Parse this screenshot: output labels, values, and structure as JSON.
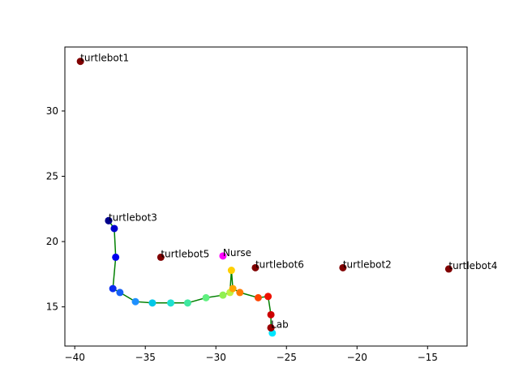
{
  "chart_data": {
    "type": "scatter",
    "xlim": [
      -40.7,
      -12.2
    ],
    "ylim": [
      12.0,
      34.9
    ],
    "x_ticks": [
      -40,
      -35,
      -30,
      -25,
      -20,
      -15
    ],
    "y_ticks": [
      15,
      20,
      25,
      30
    ],
    "x_tick_labels": [
      "−40",
      "−35",
      "−30",
      "−25",
      "−20",
      "−15"
    ],
    "y_tick_labels": [
      "15",
      "20",
      "25",
      "30"
    ],
    "grid": false,
    "path_color": "#008000",
    "path": [
      {
        "x": -37.6,
        "y": 21.6,
        "color": "#00008b"
      },
      {
        "x": -37.2,
        "y": 21.0,
        "color": "#0000cd"
      },
      {
        "x": -37.1,
        "y": 18.8,
        "color": "#0000ee"
      },
      {
        "x": -37.3,
        "y": 16.4,
        "color": "#0a2cf0"
      },
      {
        "x": -36.8,
        "y": 16.1,
        "color": "#1560f5"
      },
      {
        "x": -35.7,
        "y": 15.4,
        "color": "#1e90ff"
      },
      {
        "x": -34.5,
        "y": 15.3,
        "color": "#00c8e8"
      },
      {
        "x": -33.2,
        "y": 15.3,
        "color": "#1ee0d0"
      },
      {
        "x": -32.0,
        "y": 15.3,
        "color": "#40e8a0"
      },
      {
        "x": -30.7,
        "y": 15.7,
        "color": "#60f080"
      },
      {
        "x": -29.5,
        "y": 15.9,
        "color": "#90f050"
      },
      {
        "x": -29.0,
        "y": 16.1,
        "color": "#c0f040"
      },
      {
        "x": -28.9,
        "y": 17.8,
        "color": "#ffd000"
      },
      {
        "x": -28.8,
        "y": 16.4,
        "color": "#ffa500"
      },
      {
        "x": -28.3,
        "y": 16.1,
        "color": "#ff7a00"
      },
      {
        "x": -27.0,
        "y": 15.7,
        "color": "#ff4500"
      },
      {
        "x": -26.3,
        "y": 15.8,
        "color": "#ee1100"
      },
      {
        "x": -26.1,
        "y": 14.4,
        "color": "#cc0000"
      },
      {
        "x": -26.1,
        "y": 13.4,
        "color": "#9b0000"
      }
    ],
    "end_marker": {
      "x": -26.0,
      "y": 13.0,
      "color": "#00e5ff"
    },
    "locations": [
      {
        "label": "turtlebot1",
        "x": -39.6,
        "y": 33.8,
        "color": "#800000"
      },
      {
        "label": "turtlebot3",
        "x": -37.6,
        "y": 21.6,
        "color": "#00008b"
      },
      {
        "label": "turtlebot5",
        "x": -33.9,
        "y": 18.8,
        "color": "#800000"
      },
      {
        "label": "Nurse",
        "x": -29.5,
        "y": 18.9,
        "color": "#ff00ff"
      },
      {
        "label": "turtlebot6",
        "x": -27.2,
        "y": 18.0,
        "color": "#800000"
      },
      {
        "label": "turtlebot2",
        "x": -21.0,
        "y": 18.0,
        "color": "#800000"
      },
      {
        "label": "turtlebot4",
        "x": -13.5,
        "y": 17.9,
        "color": "#800000"
      },
      {
        "label": "Lab",
        "x": -26.1,
        "y": 13.4,
        "color": "#9b0000"
      }
    ]
  }
}
